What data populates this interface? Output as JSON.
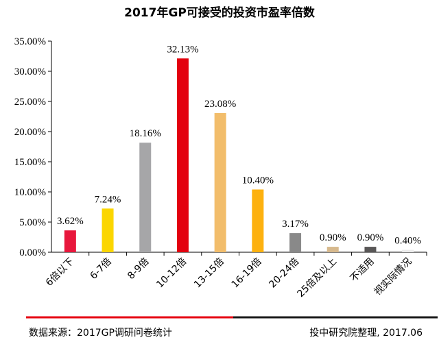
{
  "chart_data": {
    "type": "bar",
    "title": "2017年GP可接受的投资市盈率倍数",
    "xlabel": "",
    "ylabel": "",
    "ylim": [
      0,
      35
    ],
    "yticks": [
      "0.00%",
      "5.00%",
      "10.00%",
      "15.00%",
      "20.00%",
      "25.00%",
      "30.00%",
      "35.00%"
    ],
    "categories": [
      "6倍以下",
      "6-7倍",
      "8-9倍",
      "10-12倍",
      "13-15倍",
      "16-19倍",
      "20-24倍",
      "25倍及以上",
      "不适用",
      "视实际情况"
    ],
    "values": [
      3.62,
      7.24,
      18.16,
      32.13,
      23.08,
      10.4,
      3.17,
      0.9,
      0.9,
      0.4
    ],
    "value_labels": [
      "3.62%",
      "7.24%",
      "18.16%",
      "32.13%",
      "23.08%",
      "10.40%",
      "3.17%",
      "0.90%",
      "0.90%",
      "0.40%"
    ],
    "bar_colors": [
      "#e8173c",
      "#fbd600",
      "#a6a6a8",
      "#e3000f",
      "#f2bd6b",
      "#fdb10f",
      "#898989",
      "#d7b98d",
      "#595757",
      "#ececec"
    ]
  },
  "footer": {
    "source": "数据来源：2017GP调研问卷统计",
    "credit": "投中研究院整理, 2017.06",
    "line_color_left": "#e60012",
    "line_color_right": "#1a1a1a"
  }
}
